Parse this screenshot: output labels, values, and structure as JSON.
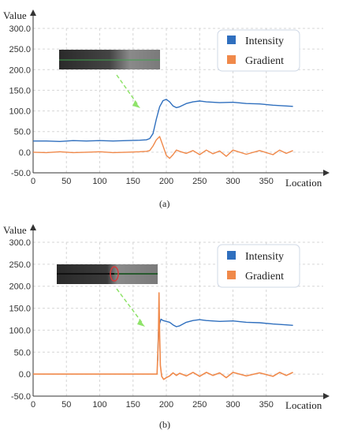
{
  "colors": {
    "intensity": "#2f6fbe",
    "gradient": "#f0894a",
    "grid": "#d6d6d6",
    "axis": "#333333",
    "arrow": "#8fe36a",
    "marker_circle": "#d83b3b"
  },
  "chart_data": [
    {
      "type": "line",
      "caption": "(a)",
      "ylabel": "Value",
      "xlabel": "Location",
      "xlim": [
        0,
        400
      ],
      "ylim": [
        -50,
        300
      ],
      "x_ticks": [
        "0",
        "50",
        "100",
        "150",
        "200",
        "250",
        "300",
        "350"
      ],
      "y_ticks": [
        "-50.0",
        "0.0",
        "50.0",
        "100.0",
        "150.0",
        "200.0",
        "250.0",
        "300.0"
      ],
      "grid": true,
      "legend_position": "top-right",
      "series": [
        {
          "name": "Intensity",
          "x": [
            0,
            20,
            40,
            60,
            80,
            100,
            120,
            140,
            160,
            170,
            175,
            180,
            185,
            190,
            195,
            200,
            205,
            210,
            215,
            220,
            230,
            240,
            250,
            260,
            280,
            300,
            320,
            340,
            360,
            380,
            390
          ],
          "y": [
            27,
            27,
            26,
            28,
            27,
            28,
            27,
            28,
            29,
            30,
            33,
            45,
            80,
            110,
            125,
            128,
            122,
            112,
            108,
            110,
            118,
            122,
            124,
            122,
            120,
            121,
            118,
            117,
            114,
            112,
            111
          ]
        },
        {
          "name": "Gradient",
          "x": [
            0,
            20,
            40,
            60,
            80,
            100,
            120,
            140,
            160,
            170,
            175,
            180,
            185,
            190,
            195,
            200,
            205,
            210,
            215,
            220,
            230,
            240,
            250,
            260,
            270,
            280,
            290,
            300,
            320,
            340,
            360,
            370,
            380,
            390
          ],
          "y": [
            0,
            -1,
            1,
            -1,
            0,
            1,
            -1,
            0,
            1,
            2,
            4,
            15,
            30,
            38,
            15,
            -8,
            -15,
            -6,
            5,
            2,
            -3,
            4,
            -6,
            5,
            -4,
            3,
            -10,
            5,
            -5,
            4,
            -6,
            5,
            -3,
            4
          ]
        }
      ],
      "inset": {
        "marker": false
      }
    },
    {
      "type": "line",
      "caption": "(b)",
      "ylabel": "Value",
      "xlabel": "Location",
      "xlim": [
        0,
        400
      ],
      "ylim": [
        -50,
        300
      ],
      "x_ticks": [
        "0",
        "50",
        "100",
        "150",
        "200",
        "250",
        "300",
        "350"
      ],
      "y_ticks": [
        "-50.0",
        "0.0",
        "50.0",
        "100.0",
        "150.0",
        "200.0",
        "250.0",
        "300.0"
      ],
      "grid": true,
      "legend_position": "top-right",
      "series": [
        {
          "name": "Intensity",
          "x": [
            187,
            188,
            190,
            192,
            195,
            200,
            205,
            210,
            215,
            220,
            230,
            240,
            250,
            260,
            280,
            300,
            320,
            340,
            360,
            380,
            390
          ],
          "y": [
            30,
            95,
            115,
            125,
            122,
            120,
            118,
            112,
            108,
            110,
            118,
            122,
            124,
            122,
            120,
            121,
            118,
            117,
            114,
            112,
            111
          ]
        },
        {
          "name": "Gradient",
          "x": [
            0,
            50,
            100,
            150,
            180,
            186,
            188,
            189,
            190,
            191,
            193,
            196,
            200,
            205,
            210,
            215,
            220,
            230,
            240,
            250,
            260,
            270,
            280,
            290,
            300,
            320,
            340,
            360,
            370,
            380,
            390
          ],
          "y": [
            0,
            0,
            0,
            0,
            0,
            0,
            80,
            185,
            90,
            20,
            -5,
            -12,
            -8,
            -4,
            3,
            -3,
            2,
            -4,
            4,
            -5,
            4,
            -3,
            3,
            -8,
            4,
            -4,
            3,
            -5,
            4,
            -3,
            4
          ]
        }
      ],
      "inset": {
        "marker": true
      }
    }
  ]
}
